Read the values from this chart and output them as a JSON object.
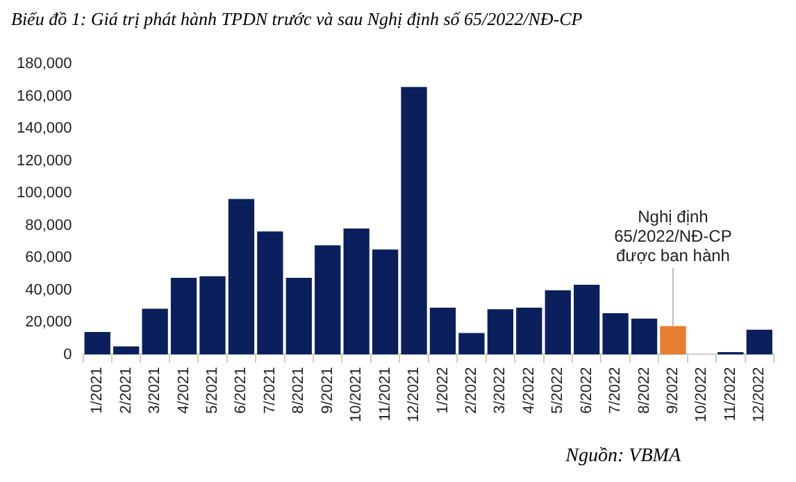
{
  "chart_data": {
    "type": "bar",
    "title": "Biểu đồ 1: Giá trị phát hành TPDN trước và sau Nghị định số 65/2022/NĐ-CP",
    "categories": [
      "1/2021",
      "2/2021",
      "3/2021",
      "4/2021",
      "5/2021",
      "6/2021",
      "7/2021",
      "8/2021",
      "9/2021",
      "10/2021",
      "11/2021",
      "12/2021",
      "1/2022",
      "2/2022",
      "3/2022",
      "4/2022",
      "5/2022",
      "6/2022",
      "7/2022",
      "8/2022",
      "9/2022",
      "10/2022",
      "11/2022",
      "12/2022"
    ],
    "values": [
      14000,
      5000,
      28400,
      47500,
      48500,
      96300,
      76200,
      47500,
      67600,
      78100,
      65100,
      165700,
      29000,
      13300,
      28100,
      29000,
      39800,
      43200,
      25600,
      22200,
      17600,
      0,
      1500,
      15400
    ],
    "colors": [
      "#0a1f5c",
      "#0a1f5c",
      "#0a1f5c",
      "#0a1f5c",
      "#0a1f5c",
      "#0a1f5c",
      "#0a1f5c",
      "#0a1f5c",
      "#0a1f5c",
      "#0a1f5c",
      "#0a1f5c",
      "#0a1f5c",
      "#0a1f5c",
      "#0a1f5c",
      "#0a1f5c",
      "#0a1f5c",
      "#0a1f5c",
      "#0a1f5c",
      "#0a1f5c",
      "#0a1f5c",
      "#e87e2f",
      "#0a1f5c",
      "#0a1f5c",
      "#0a1f5c"
    ],
    "ylim": [
      0,
      180000
    ],
    "yticks": [
      {
        "value": 0,
        "label": "0"
      },
      {
        "value": 20000,
        "label": "20,000"
      },
      {
        "value": 40000,
        "label": "40,000"
      },
      {
        "value": 60000,
        "label": "60,000"
      },
      {
        "value": 80000,
        "label": "80,000"
      },
      {
        "value": 100000,
        "label": "100,000"
      },
      {
        "value": 120000,
        "label": "120,000"
      },
      {
        "value": 140000,
        "label": "140,000"
      },
      {
        "value": 160000,
        "label": "160,000"
      },
      {
        "value": 180000,
        "label": "180,000"
      }
    ],
    "grid": false,
    "legend": false,
    "annotations": [
      {
        "text": "Nghị định\n65/2022/NĐ-CP\nđược ban hành",
        "x": "9/2022",
        "y": 17600
      },
      "Nguồn: VBMA"
    ]
  }
}
